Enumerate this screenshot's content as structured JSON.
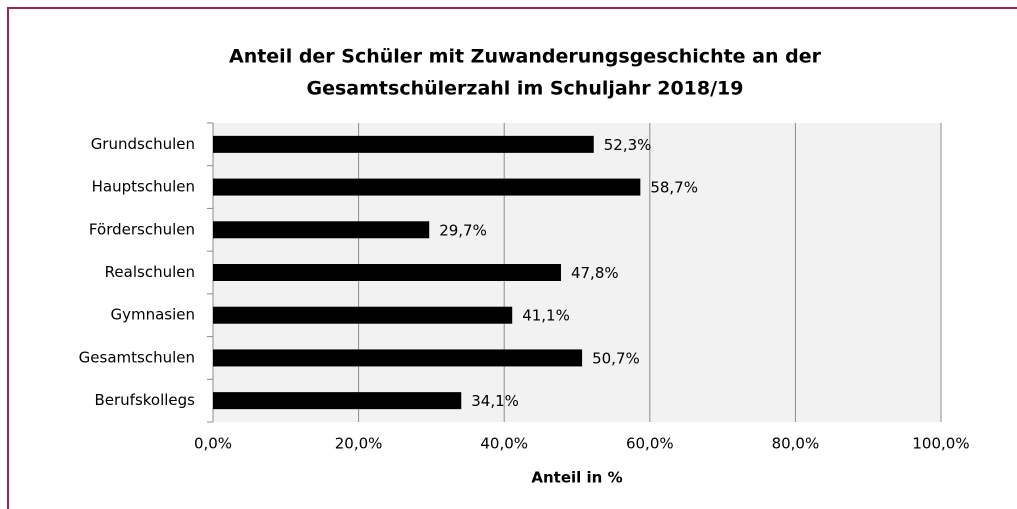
{
  "chart_data": {
    "type": "bar",
    "orientation": "horizontal",
    "title": [
      "Anteil der Schüler mit Zuwanderungsgeschichte an der",
      "Gesamtschülerzahl im Schuljahr 2018/19"
    ],
    "categories": [
      "Grundschulen",
      "Hauptschulen",
      "Förderschulen",
      "Realschulen",
      "Gymnasien",
      "Gesamtschulen",
      "Berufskollegs"
    ],
    "values": [
      52.3,
      58.7,
      29.7,
      47.8,
      41.1,
      50.7,
      34.1
    ],
    "value_labels": [
      "52,3%",
      "58,7%",
      "29,7%",
      "47,8%",
      "41,1%",
      "50,7%",
      "34,1%"
    ],
    "color": "#000000",
    "xlabel": "Anteil in %",
    "xlim": [
      0,
      100
    ],
    "xticks": [
      {
        "value": 0,
        "label": "0,0%"
      },
      {
        "value": 20,
        "label": "20,0%"
      },
      {
        "value": 40,
        "label": "40,0%"
      },
      {
        "value": 60,
        "label": "60,0%"
      },
      {
        "value": 80,
        "label": "80,0%"
      },
      {
        "value": 100,
        "label": "100,0%"
      }
    ],
    "grid": true
  }
}
